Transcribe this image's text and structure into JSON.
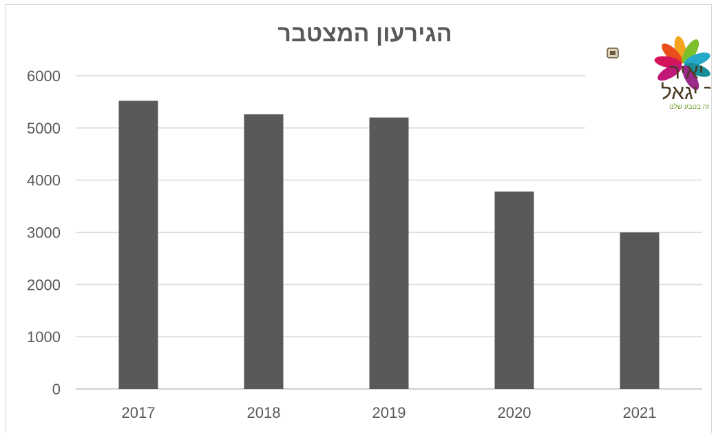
{
  "chart_data": {
    "type": "bar",
    "title": "הגירעון המצטבר",
    "categories": [
      "2017",
      "2018",
      "2019",
      "2020",
      "2021"
    ],
    "values": [
      5520,
      5260,
      5200,
      3780,
      3000
    ],
    "ylim": [
      0,
      6000
    ],
    "yticks": [
      0,
      1000,
      2000,
      3000,
      4000,
      5000,
      6000
    ],
    "xlabel": "",
    "ylabel": "",
    "grid": true,
    "bar_color": "#595959"
  },
  "logo": {
    "line1": "כוכב יאיר",
    "line2": "צור יגאל",
    "tagline": "קהילה זה בטבע שלנו"
  }
}
